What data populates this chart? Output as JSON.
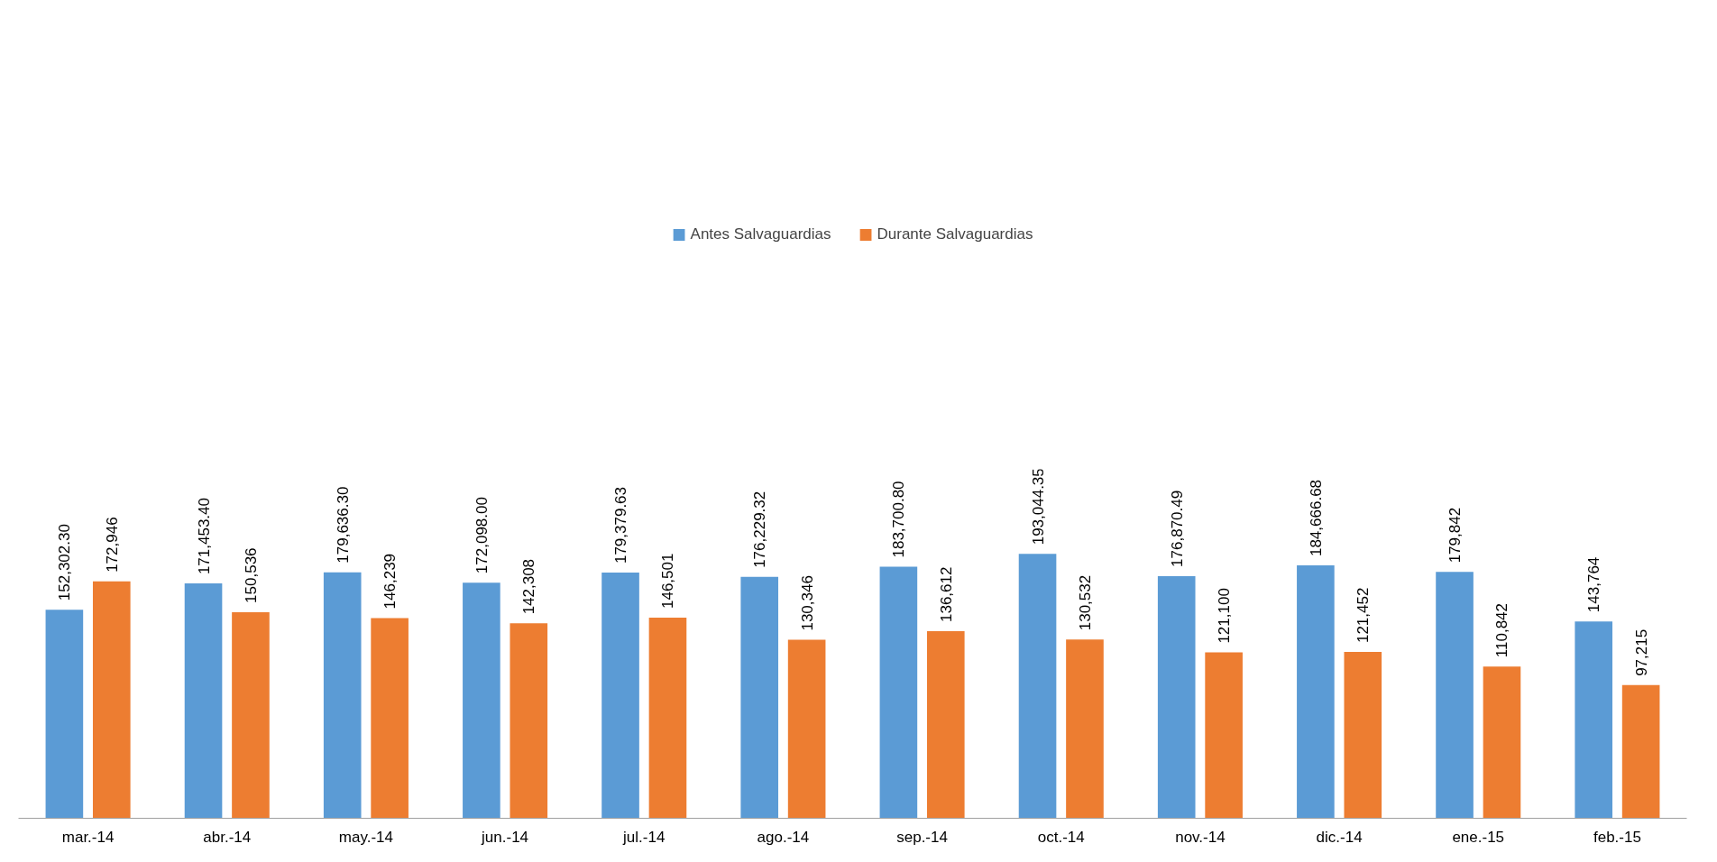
{
  "chart_data": {
    "type": "bar",
    "categories": [
      "mar.-14",
      "abr.-14",
      "may.-14",
      "jun.-14",
      "jul.-14",
      "ago.-14",
      "sep.-14",
      "oct.-14",
      "nov.-14",
      "dic.-14",
      "ene.-15",
      "feb.-15"
    ],
    "series": [
      {
        "name": "Antes Salvaguardias",
        "color": "#5b9bd5",
        "values": [
          152302.3,
          171453.4,
          179636.3,
          172098.0,
          179379.63,
          176229.32,
          183700.8,
          193044.35,
          176870.49,
          184666.68,
          179842,
          143764
        ],
        "value_labels": [
          "152,302.30",
          "171,453.40",
          "179,636.30",
          "172,098.00",
          "179,379.63",
          "176,229.32",
          "183,700.80",
          "193,044.35",
          "176,870.49",
          "184,666.68",
          "179,842",
          "143,764"
        ]
      },
      {
        "name": "Durante Salvaguardias",
        "color": "#ed7d31",
        "values": [
          172946,
          150536,
          146239,
          142308,
          146501,
          130346,
          136612,
          130532,
          121100,
          121452,
          110842,
          97215
        ],
        "value_labels": [
          "172,946",
          "150,536",
          "146,239",
          "142,308",
          "146,501",
          "130,346",
          "136,612",
          "130,532",
          "121,100",
          "121,452",
          "110,842",
          "97,215"
        ]
      }
    ],
    "legend": "top",
    "grid": false
  }
}
